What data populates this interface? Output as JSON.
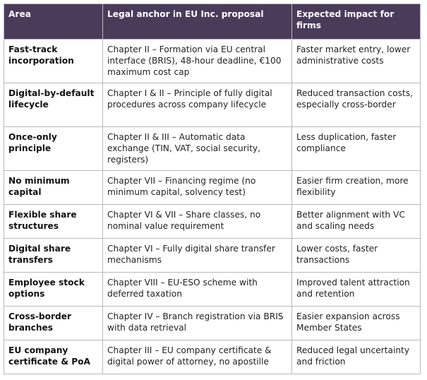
{
  "table": {
    "header": [
      "Area",
      "Legal anchor in EU Inc. proposal",
      "Expected impact for firms"
    ],
    "rows": [
      [
        "Fast-track incorporation",
        "Chapter II – Formation via EU central interface (BRIS), 48-hour deadline, €100 maximum cost cap",
        "Faster market entry, lower administrative costs"
      ],
      [
        "Digital-by-default lifecycle",
        "Chapter I & II – Principle of fully digital procedures across company lifecycle",
        "Reduced transaction costs, especially cross-border"
      ],
      [
        "Once-only principle",
        "Chapter II & III – Automatic data exchange (TIN, VAT, social security, registers)",
        "Less duplication, faster compliance"
      ],
      [
        "No minimum capital",
        "Chapter VII – Financing regime (no minimum capital, solvency test)",
        "Easier firm creation, more flexibility"
      ],
      [
        "Flexible share structures",
        "Chapter VI & VII – Share classes, no nominal value requirement",
        "Better alignment with VC and scaling needs"
      ],
      [
        "Digital share transfers",
        "Chapter VI – Fully digital share transfer mechanisms",
        "Lower costs, faster transactions"
      ],
      [
        "Employee stock options",
        "Chapter VIII – EU-ESO scheme with deferred taxation",
        "Improved talent attraction and retention"
      ],
      [
        "Cross-border branches",
        "Chapter IV – Branch registration via BRIS with data retrieval",
        "Easier expansion across Member States"
      ],
      [
        "EU company certificate & PoA",
        "Chapter III – EU company certificate & digital power of attorney, no apostille",
        "Reduced legal uncertainty and friction"
      ]
    ]
  }
}
